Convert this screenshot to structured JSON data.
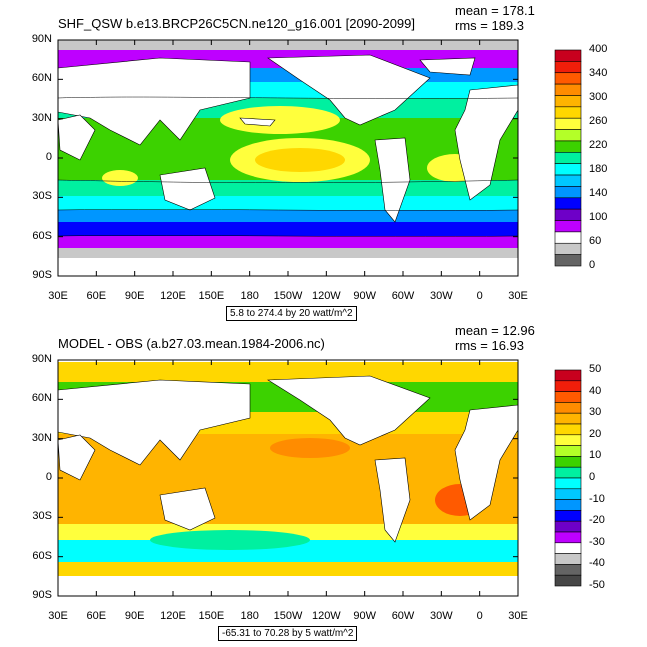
{
  "panels": [
    {
      "title": "SHF_QSW b.e13.BRCP26C5CN.ne120_g16.001 [2090-2099]",
      "stats": {
        "mean": "mean = 178.1",
        "rms": "rms = 189.3"
      },
      "range_note": "5.8 to 274.4 by 20 watt/m^2",
      "lat_ticks": [
        "90N",
        "60N",
        "30N",
        "0",
        "30S",
        "60S",
        "90S"
      ],
      "lon_ticks": [
        "30E",
        "60E",
        "90E",
        "120E",
        "150E",
        "180",
        "150W",
        "120W",
        "90W",
        "60W",
        "30W",
        "0",
        "30E"
      ],
      "colorbar": {
        "labels": [
          "400",
          "340",
          "300",
          "260",
          "220",
          "180",
          "140",
          "100",
          "60",
          "0"
        ],
        "colors": [
          "#c8001e",
          "#f01e0a",
          "#ff5a00",
          "#ff8c00",
          "#ffb400",
          "#ffd700",
          "#ffff3c",
          "#b4ff28",
          "#3cd200",
          "#00f0a0",
          "#00ffff",
          "#00c8ff",
          "#0096ff",
          "#0000ff",
          "#6e00c8",
          "#be00ff",
          "#ffffff",
          "#c8c8c8",
          "#646464"
        ]
      }
    },
    {
      "title": "MODEL - OBS (a.b27.03.mean.1984-2006.nc)",
      "stats": {
        "mean": "mean = 12.96",
        "rms": "rms = 16.93"
      },
      "range_note": "-65.31 to 70.28 by 5 watt/m^2",
      "lat_ticks": [
        "90N",
        "60N",
        "30N",
        "0",
        "30S",
        "60S",
        "90S"
      ],
      "lon_ticks": [
        "30E",
        "60E",
        "90E",
        "120E",
        "150E",
        "180",
        "150W",
        "120W",
        "90W",
        "60W",
        "30W",
        "0",
        "30E"
      ],
      "colorbar": {
        "labels": [
          "50",
          "40",
          "30",
          "20",
          "10",
          "0",
          "-10",
          "-20",
          "-30",
          "-40",
          "-50"
        ],
        "colors": [
          "#c8001e",
          "#f01e0a",
          "#ff5a00",
          "#ff8c00",
          "#ffb400",
          "#ffd700",
          "#ffff3c",
          "#b4ff28",
          "#3cd200",
          "#00f0a0",
          "#00ffff",
          "#00c8ff",
          "#0096ff",
          "#0000ff",
          "#6e00c8",
          "#be00ff",
          "#ffffff",
          "#c8c8c8",
          "#646464",
          "#464646"
        ]
      }
    }
  ]
}
